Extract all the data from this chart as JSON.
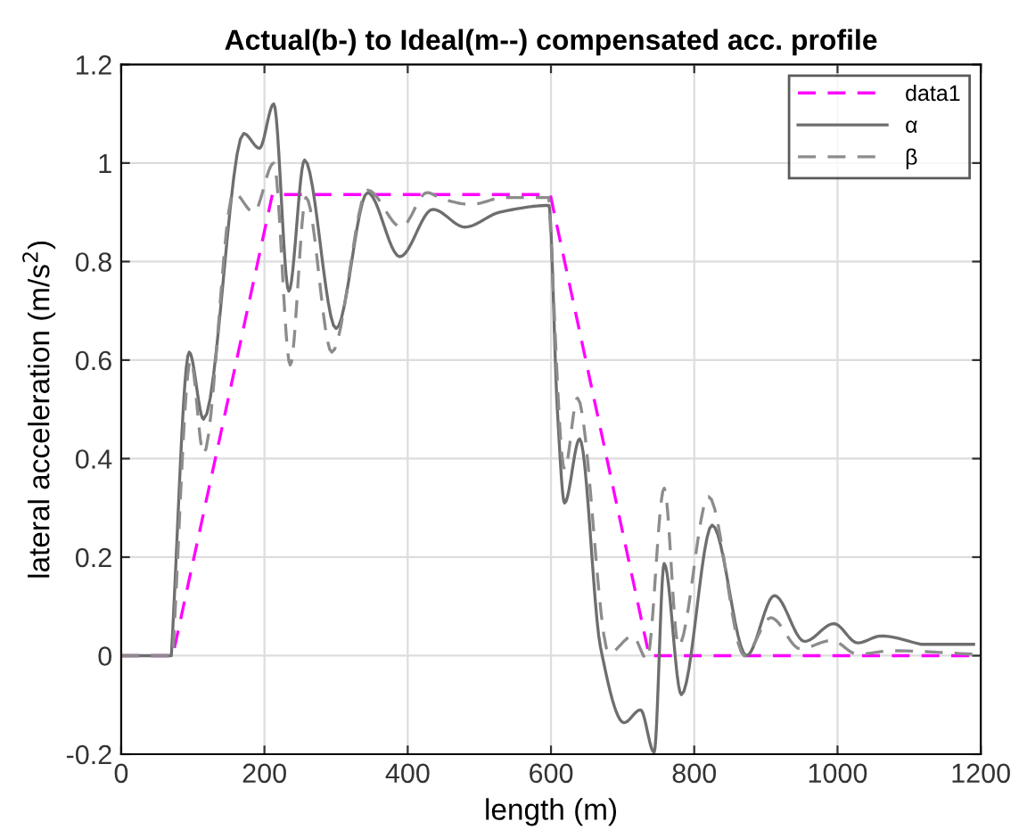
{
  "chart_data": {
    "type": "line",
    "title": "Actual(b-) to Ideal(m--) compensated acc. profile",
    "xlabel": "length (m)",
    "ylabel": "lateral acceleration (m/s$^{2}$)",
    "xlim": [
      0,
      1200
    ],
    "xticks": [
      0,
      200,
      400,
      600,
      800,
      1000,
      1200
    ],
    "ylim": [
      -0.2,
      1.2
    ],
    "yticks": [
      -0.2,
      0,
      0.2,
      0.4,
      0.6,
      0.8,
      1,
      1.2
    ],
    "grid": true,
    "legend": "top right",
    "marker": "none",
    "series": [
      {
        "name": "data1",
        "color": "#ff00ff",
        "line_style": "dashed",
        "x": [
          0,
          72,
          211,
          599,
          737,
          1200
        ],
        "values": [
          0,
          0,
          0.936,
          0.936,
          0,
          0
        ]
      },
      {
        "name": "α",
        "color": "#6e6e6e",
        "line_style": "solid",
        "x": [
          0,
          70,
          95,
          115,
          171,
          193,
          213,
          234,
          256,
          300,
          344,
          389,
          435,
          480,
          528,
          597,
          609,
          619,
          640,
          669,
          702,
          725,
          744,
          758,
          782,
          825,
          873,
          912,
          954,
          995,
          1028,
          1061,
          1117,
          1190
        ],
        "values": [
          0,
          0,
          0.616,
          0.48,
          1.06,
          1.03,
          1.12,
          0.74,
          1.006,
          0.664,
          0.94,
          0.81,
          0.906,
          0.87,
          0.9,
          0.914,
          0.496,
          0.31,
          0.44,
          0.018,
          -0.136,
          -0.11,
          -0.196,
          0.187,
          -0.079,
          0.265,
          0,
          0.122,
          0.029,
          0.065,
          0.026,
          0.04,
          0.023,
          0.023
        ]
      },
      {
        "name": "β",
        "color": "#8c8c8c",
        "line_style": "dashed",
        "x": [
          0,
          72,
          97,
          115,
          157,
          185,
          213,
          236,
          258,
          294,
          344,
          391,
          427,
          447,
          488,
          528,
          597,
          619,
          637,
          681,
          714,
          734,
          758,
          778,
          820,
          870,
          907,
          948,
          992,
          1028,
          1077,
          1190
        ],
        "values": [
          0,
          0,
          0.6,
          0.41,
          0.94,
          0.9,
          1.0,
          0.59,
          0.93,
          0.616,
          0.945,
          0.87,
          0.94,
          0.928,
          0.916,
          0.93,
          0.93,
          0.378,
          0.523,
          0.005,
          0.04,
          -0.007,
          0.34,
          0.02,
          0.323,
          0,
          0.077,
          0.014,
          0.031,
          0.003,
          0.01,
          0.003
        ]
      }
    ]
  }
}
